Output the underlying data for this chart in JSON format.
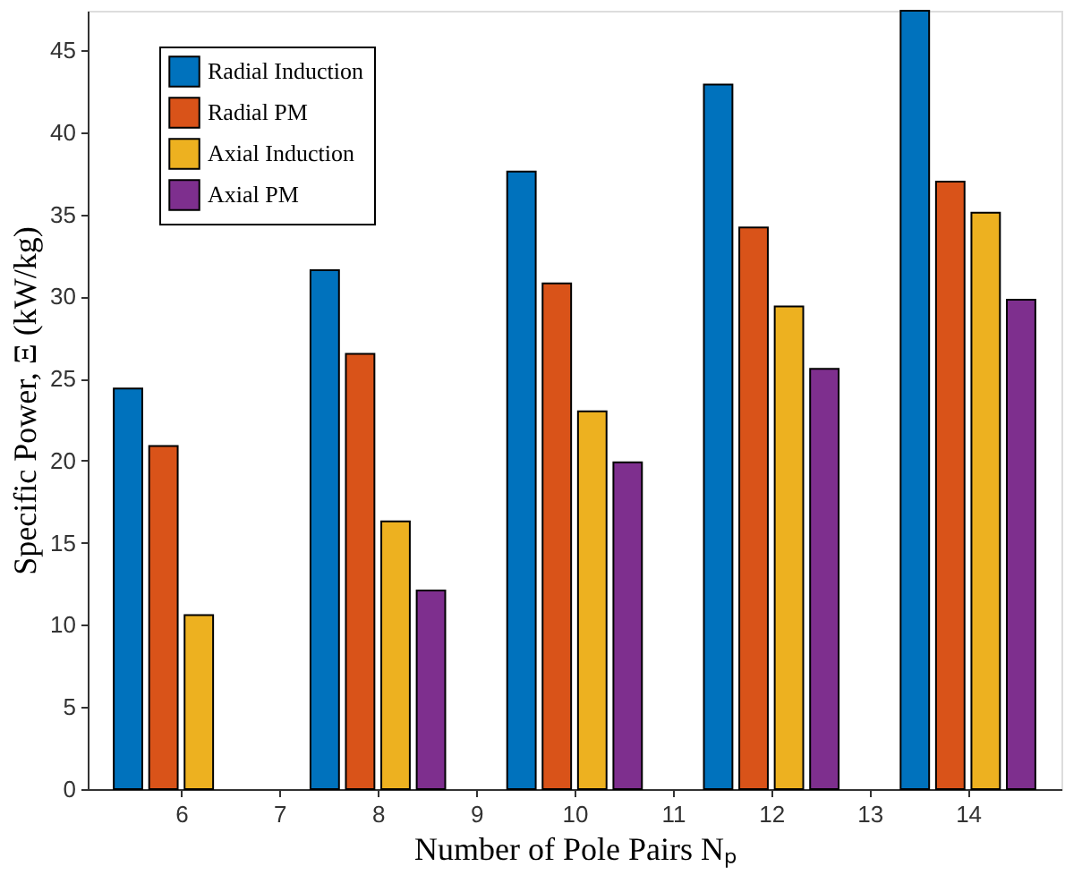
{
  "chart_data": {
    "type": "bar",
    "xlabel": "Number of Pole Pairs Nₚ",
    "ylabel": "Specific Power, Ξ (kW/kg)",
    "x": [
      6,
      8,
      10,
      12,
      14
    ],
    "series": [
      {
        "name": "Radial Induction",
        "color": "#0072bd",
        "values": [
          24.4,
          31.6,
          37.6,
          42.9,
          47.4
        ]
      },
      {
        "name": "Radial PM",
        "color": "#d95319",
        "values": [
          20.9,
          26.5,
          30.8,
          34.2,
          37.0
        ]
      },
      {
        "name": "Axial Induction",
        "color": "#edb120",
        "values": [
          10.6,
          16.3,
          23.0,
          29.4,
          35.1
        ]
      },
      {
        "name": "Axial PM",
        "color": "#7e2f8e",
        "values": [
          null,
          12.1,
          19.9,
          25.6,
          29.8
        ]
      }
    ],
    "xlim": [
      5.05,
      14.95
    ],
    "ylim": [
      0,
      47.4
    ],
    "xticks": [
      6,
      7,
      8,
      9,
      10,
      11,
      12,
      13,
      14
    ],
    "yticks": [
      0,
      5,
      10,
      15,
      20,
      25,
      30,
      35,
      40,
      45
    ],
    "grid": false,
    "legend": "top left"
  }
}
